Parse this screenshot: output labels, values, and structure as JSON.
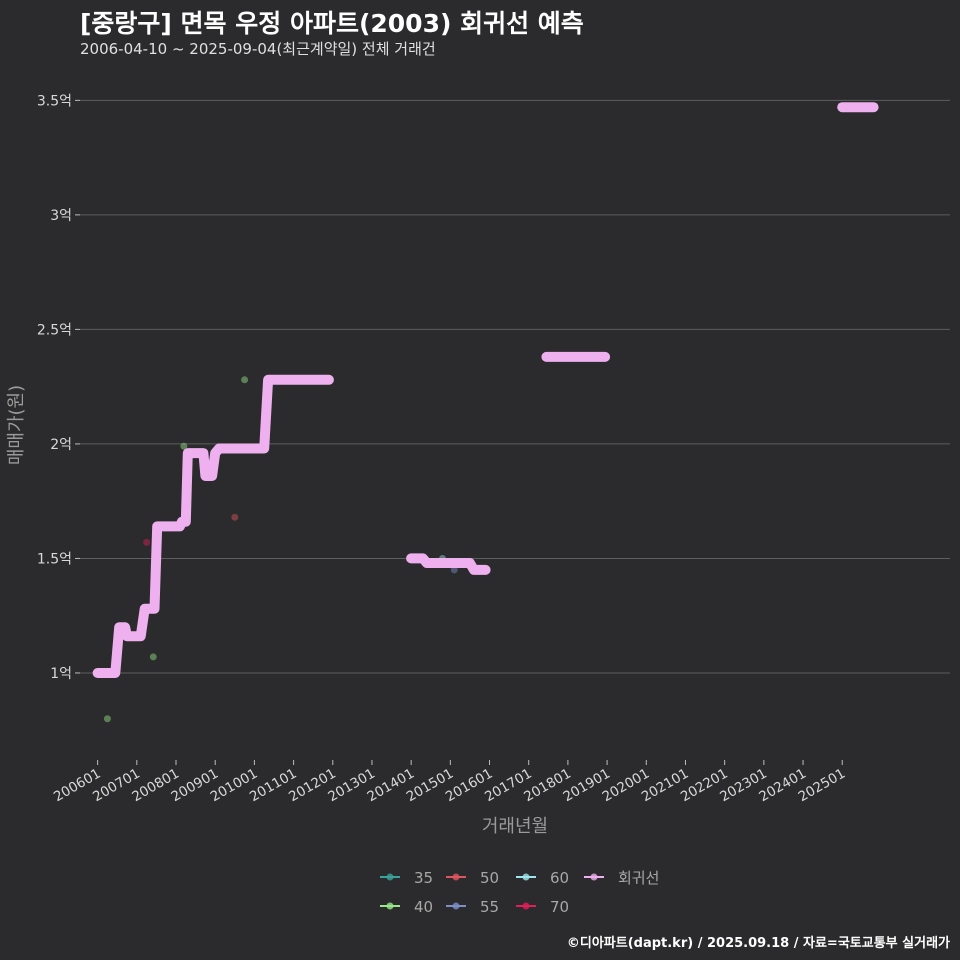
{
  "title": "[중랑구] 면목 우정 아파트(2003) 회귀선 예측",
  "subtitle": "2006-04-10 ~ 2025-09-04(최근계약일) 전체 거래건",
  "footer": "©디아파트(dapt.kr) / 2025.09.18 / 자료=국토교통부 실거래가",
  "colors": {
    "background": "#2b2a2c",
    "grid": "#5e5e5e",
    "regression": "#eeb0ee"
  },
  "chart_data": {
    "type": "scatter",
    "xlabel": "거래년월",
    "ylabel": "매매가(원)",
    "x_unit": "year (decimal)",
    "y_unit": "억",
    "xlim": [
      2005.55,
      2027.75
    ],
    "ylim": [
      0.62,
      3.65
    ],
    "y_ticks": [
      {
        "value": 1.0,
        "label": "1억"
      },
      {
        "value": 1.5,
        "label": "1.5억"
      },
      {
        "value": 2.0,
        "label": "2억"
      },
      {
        "value": 2.5,
        "label": "2.5억"
      },
      {
        "value": 3.0,
        "label": "3억"
      },
      {
        "value": 3.5,
        "label": "3.5억"
      }
    ],
    "x_ticks": [
      {
        "value": 2006,
        "label": "200601"
      },
      {
        "value": 2007,
        "label": "200701"
      },
      {
        "value": 2008,
        "label": "200801"
      },
      {
        "value": 2009,
        "label": "200901"
      },
      {
        "value": 2010,
        "label": "201001"
      },
      {
        "value": 2011,
        "label": "201101"
      },
      {
        "value": 2012,
        "label": "201201"
      },
      {
        "value": 2013,
        "label": "201301"
      },
      {
        "value": 2014,
        "label": "201401"
      },
      {
        "value": 2015,
        "label": "201501"
      },
      {
        "value": 2016,
        "label": "201601"
      },
      {
        "value": 2017,
        "label": "201701"
      },
      {
        "value": 2018,
        "label": "201801"
      },
      {
        "value": 2019,
        "label": "201901"
      },
      {
        "value": 2020,
        "label": "202001"
      },
      {
        "value": 2021,
        "label": "202101"
      },
      {
        "value": 2022,
        "label": "202201"
      },
      {
        "value": 2023,
        "label": "202301"
      },
      {
        "value": 2024,
        "label": "202401"
      },
      {
        "value": 2025,
        "label": "202501"
      }
    ],
    "legend": {
      "position": "bottom",
      "entries": [
        {
          "label": "35",
          "color": "#3aa39b"
        },
        {
          "label": "50",
          "color": "#e05660"
        },
        {
          "label": "60",
          "color": "#9ee5ee"
        },
        {
          "label": "회귀선",
          "color": "#eeb0ee"
        },
        {
          "label": "40",
          "color": "#98e88a"
        },
        {
          "label": "55",
          "color": "#7c8fc8"
        },
        {
          "label": "70",
          "color": "#e01e5a"
        }
      ]
    },
    "series": [
      {
        "name": "40",
        "color": "#98e88a",
        "points": [
          [
            2006.25,
            0.8
          ],
          [
            2007.42,
            1.07
          ],
          [
            2008.2,
            1.99
          ],
          [
            2009.75,
            2.28
          ]
        ]
      },
      {
        "name": "50",
        "color": "#e05660",
        "points": [
          [
            2009.5,
            1.68
          ]
        ]
      },
      {
        "name": "70",
        "color": "#e01e5a",
        "points": [
          [
            2007.25,
            1.57
          ]
        ]
      },
      {
        "name": "60",
        "color": "#9ee5ee",
        "points": [
          [
            2014.8,
            1.5
          ]
        ]
      },
      {
        "name": "55",
        "color": "#7c8fc8",
        "points": [
          [
            2015.1,
            1.45
          ]
        ]
      }
    ],
    "regression_segments": [
      [
        [
          2006.0,
          1.0
        ],
        [
          2006.45,
          1.0
        ],
        [
          2006.55,
          1.2
        ],
        [
          2006.7,
          1.2
        ],
        [
          2006.75,
          1.16
        ],
        [
          2007.1,
          1.16
        ],
        [
          2007.2,
          1.28
        ],
        [
          2007.45,
          1.28
        ],
        [
          2007.52,
          1.64
        ],
        [
          2008.1,
          1.64
        ],
        [
          2008.15,
          1.66
        ],
        [
          2008.25,
          1.66
        ],
        [
          2008.3,
          1.96
        ],
        [
          2008.7,
          1.96
        ],
        [
          2008.75,
          1.86
        ],
        [
          2008.92,
          1.86
        ],
        [
          2009.0,
          1.96
        ],
        [
          2009.1,
          1.98
        ],
        [
          2010.25,
          1.98
        ],
        [
          2010.35,
          2.28
        ],
        [
          2011.9,
          2.28
        ]
      ],
      [
        [
          2014.0,
          1.5
        ],
        [
          2014.3,
          1.5
        ],
        [
          2014.4,
          1.48
        ],
        [
          2015.5,
          1.48
        ],
        [
          2015.6,
          1.45
        ],
        [
          2015.9,
          1.45
        ]
      ],
      [
        [
          2017.45,
          2.38
        ],
        [
          2018.95,
          2.38
        ]
      ],
      [
        [
          2025.0,
          3.47
        ],
        [
          2025.8,
          3.47
        ]
      ]
    ]
  }
}
